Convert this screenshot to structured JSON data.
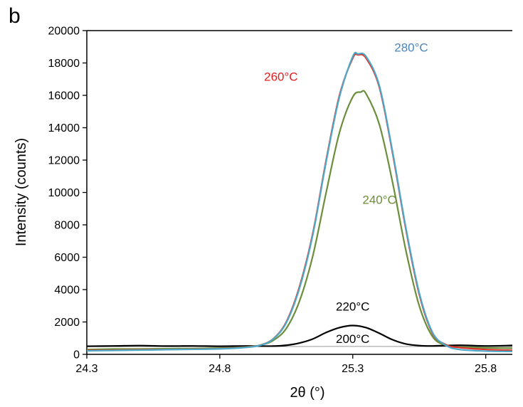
{
  "panel_label": "b",
  "chart_data": {
    "type": "line",
    "xlabel": "2θ (°)",
    "ylabel": "Intensity (counts)",
    "xlim": [
      24.3,
      25.9
    ],
    "ylim": [
      0,
      20000
    ],
    "xticks": [
      24.3,
      24.8,
      25.3,
      25.8
    ],
    "xtick_labels": [
      "24.3",
      "24.8",
      "25.3",
      "25.8"
    ],
    "yticks": [
      0,
      2000,
      4000,
      6000,
      8000,
      10000,
      12000,
      14000,
      16000,
      18000,
      20000
    ],
    "ytick_labels": [
      "0",
      "2000",
      "4000",
      "6000",
      "8000",
      "10000",
      "12000",
      "14000",
      "16000",
      "18000",
      "20000"
    ],
    "grid": false,
    "legend": "inline labels",
    "series": [
      {
        "name": "200°C",
        "color": "#999999",
        "x": [
          24.3,
          24.5,
          24.7,
          24.9,
          25.1,
          25.3,
          25.5,
          25.7,
          25.9
        ],
        "y": [
          480,
          480,
          480,
          480,
          485,
          490,
          485,
          480,
          480
        ]
      },
      {
        "name": "220°C",
        "color": "#000000",
        "x": [
          24.3,
          24.4,
          24.5,
          24.6,
          24.7,
          24.8,
          24.9,
          25.0,
          25.05,
          25.1,
          25.15,
          25.2,
          25.25,
          25.3,
          25.35,
          25.4,
          25.45,
          25.5,
          25.55,
          25.6,
          25.7,
          25.8,
          25.9
        ],
        "y": [
          500,
          520,
          540,
          510,
          520,
          500,
          520,
          510,
          560,
          700,
          950,
          1350,
          1650,
          1780,
          1650,
          1300,
          900,
          640,
          540,
          520,
          560,
          520,
          550
        ]
      },
      {
        "name": "240°C",
        "color": "#6b8e3a",
        "x": [
          24.3,
          24.4,
          24.5,
          24.6,
          24.7,
          24.8,
          24.9,
          24.95,
          25.0,
          25.05,
          25.1,
          25.15,
          25.2,
          25.25,
          25.3,
          25.33,
          25.35,
          25.4,
          25.45,
          25.5,
          25.55,
          25.6,
          25.65,
          25.7,
          25.8,
          25.9
        ],
        "y": [
          300,
          330,
          330,
          350,
          360,
          390,
          460,
          560,
          850,
          1600,
          3300,
          6100,
          10000,
          13700,
          15900,
          16200,
          16100,
          14200,
          10600,
          6400,
          3000,
          1100,
          560,
          450,
          400,
          380
        ]
      },
      {
        "name": "260°C",
        "color": "#e0312a",
        "x": [
          24.3,
          24.4,
          24.5,
          24.6,
          24.7,
          24.8,
          24.9,
          24.95,
          25.0,
          25.05,
          25.1,
          25.15,
          25.2,
          25.25,
          25.3,
          25.32,
          25.35,
          25.4,
          25.45,
          25.5,
          25.55,
          25.6,
          25.65,
          25.7,
          25.8,
          25.9
        ],
        "y": [
          250,
          260,
          280,
          300,
          320,
          350,
          440,
          560,
          950,
          2000,
          4200,
          7500,
          12000,
          16000,
          18300,
          18500,
          18300,
          16500,
          12400,
          7700,
          3700,
          1300,
          600,
          420,
          300,
          250
        ]
      },
      {
        "name": "280°C",
        "color": "#4ca9c9",
        "x": [
          24.3,
          24.4,
          24.5,
          24.6,
          24.7,
          24.8,
          24.9,
          24.95,
          25.0,
          25.05,
          25.1,
          25.15,
          25.2,
          25.25,
          25.3,
          25.32,
          25.35,
          25.4,
          25.45,
          25.5,
          25.55,
          25.6,
          25.65,
          25.7,
          25.8,
          25.9
        ],
        "y": [
          220,
          240,
          260,
          290,
          310,
          340,
          430,
          550,
          930,
          1950,
          4100,
          7400,
          11900,
          15900,
          18400,
          18550,
          18400,
          16600,
          12500,
          7800,
          3800,
          1350,
          560,
          300,
          200,
          180
        ]
      }
    ],
    "annotations": [
      {
        "text": "280°C",
        "color": "#4a86c0",
        "x": 25.52,
        "y": 18700
      },
      {
        "text": "260°C",
        "color": "#e02020",
        "x": 25.03,
        "y": 16900
      },
      {
        "text": "240°C",
        "color": "#6b8e3a",
        "x": 25.4,
        "y": 9300
      },
      {
        "text": "220°C",
        "color": "#000000",
        "x": 25.3,
        "y": 2700
      },
      {
        "text": "200°C",
        "color": "#000000",
        "x": 25.3,
        "y": 700
      }
    ]
  }
}
